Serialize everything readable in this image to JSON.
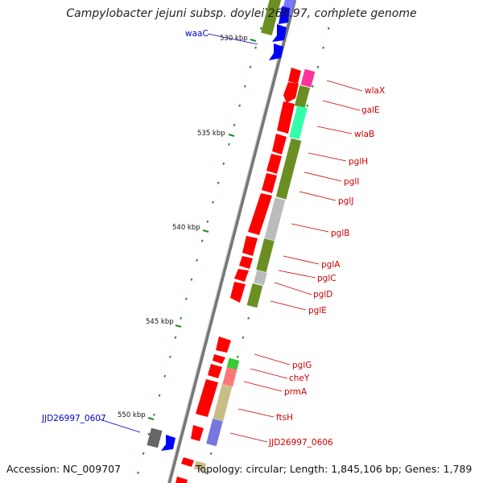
{
  "title": "Campylobacter jejuni subsp. doylei 269.97, complete genome",
  "footer": {
    "accession": "Accession: NC_009707",
    "summary": "Topology: circular; Length: 1,845,106 bp; Genes: 1,789"
  },
  "ticks": [
    {
      "label": "530 kbp",
      "kbp": 530
    },
    {
      "label": "535 kbp",
      "kbp": 535
    },
    {
      "label": "540 kbp",
      "kbp": 540
    },
    {
      "label": "545 kbp",
      "kbp": 545
    },
    {
      "label": "550 kbp",
      "kbp": 550
    }
  ],
  "genes": [
    {
      "name": "waaC",
      "color": "blue"
    },
    {
      "name": "wlaX",
      "color": "red"
    },
    {
      "name": "galE",
      "color": "red"
    },
    {
      "name": "wlaB",
      "color": "red"
    },
    {
      "name": "pglH",
      "color": "red"
    },
    {
      "name": "pglI",
      "color": "red"
    },
    {
      "name": "pglJ",
      "color": "red"
    },
    {
      "name": "pglB",
      "color": "red"
    },
    {
      "name": "pglA",
      "color": "red"
    },
    {
      "name": "pglC",
      "color": "red"
    },
    {
      "name": "pglD",
      "color": "red"
    },
    {
      "name": "pglE",
      "color": "red"
    },
    {
      "name": "pglG",
      "color": "red"
    },
    {
      "name": "cheY",
      "color": "red"
    },
    {
      "name": "prmA",
      "color": "red"
    },
    {
      "name": "ftsH",
      "color": "red"
    },
    {
      "name": "JJD26997_0606",
      "color": "red"
    },
    {
      "name": "JJD26997_0607",
      "color": "blue"
    }
  ],
  "colors": {
    "cds": "#ff0000",
    "cog_blue": "#0000ff",
    "cog_olive": "#6b8e23",
    "cog_grey": "#bbbbbb",
    "cog_green": "#33cc33",
    "cog_pink": "#ff3399",
    "cog_aqua": "#33ffaa",
    "cog_salmon": "#ff7777",
    "cog_khaki": "#c8bd84",
    "cog_lavender": "#7777dd",
    "backbone": "#777777",
    "label_red": "#cc0000",
    "label_blue": "#0000cc"
  }
}
